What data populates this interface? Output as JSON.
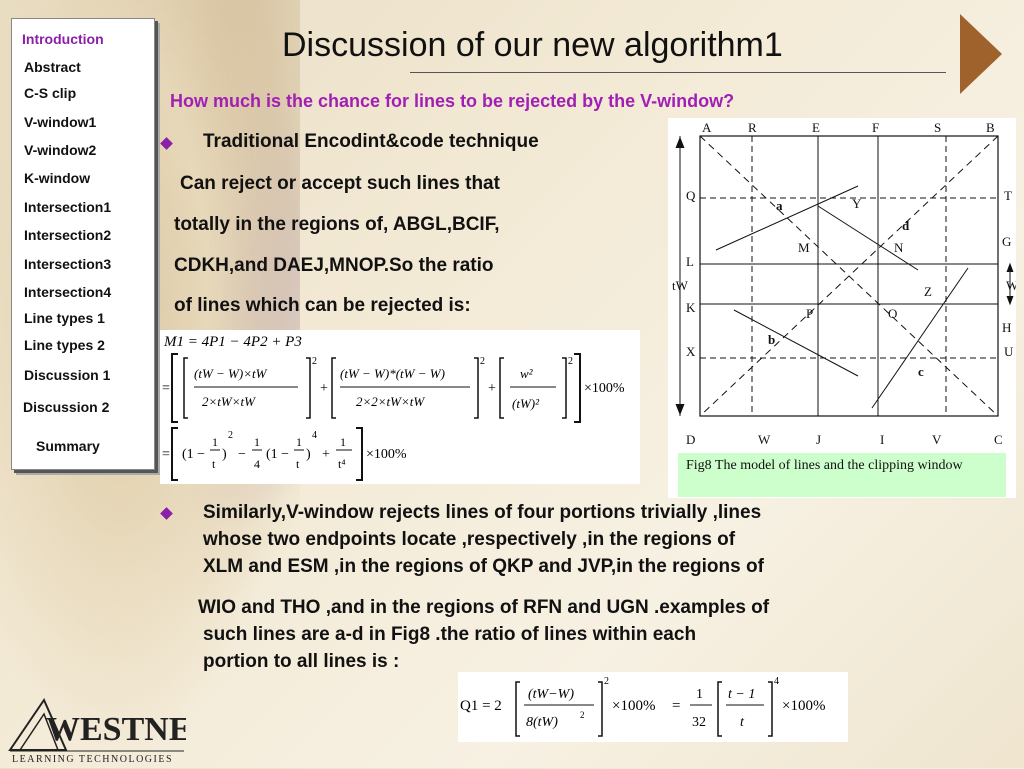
{
  "sidebar": {
    "items": [
      {
        "label": "Introduction",
        "active": true
      },
      {
        "label": "Abstract"
      },
      {
        "label": "C-S clip"
      },
      {
        "label": "V-window1"
      },
      {
        "label": "V-window2"
      },
      {
        "label": "K-window"
      },
      {
        "label": "Intersection1"
      },
      {
        "label": "Intersection2"
      },
      {
        "label": "Intersection3"
      },
      {
        "label": "Intersection4"
      },
      {
        "label": "Line types 1"
      },
      {
        "label": "Line types 2"
      },
      {
        "label": "Discussion 1"
      },
      {
        "label": "Discussion 2"
      },
      {
        "label": "Summary"
      }
    ]
  },
  "slide": {
    "title": "Discussion of our new algorithm1",
    "question": "How much is the chance for lines to be rejected  by the V-window?",
    "bullet1": "Traditional Encodint&code technique",
    "para1": [
      "Can reject or accept  such lines that",
      "totally in the regions of, ABGL,BCIF,",
      "CDKH,and DAEJ,MNOP.So the ratio",
      "of lines which can be rejected is:"
    ],
    "bullet2": [
      "Similarly,V-window rejects lines of four portions trivially ,lines",
      "whose two endpoints locate ,respectively ,in the regions of",
      "XLM and ESM ,in the regions of QKP and JVP,in the regions of"
    ],
    "para2": [
      "WIO and THO ,and in the regions of RFN and UGN .examples of",
      "such lines are a-d  in Fig8  .the ratio of lines within each",
      "portion to all lines is :"
    ]
  },
  "figure": {
    "top_labels": [
      "A",
      "R",
      "E",
      "F",
      "S",
      "B"
    ],
    "bottom_labels": [
      "D",
      "W",
      "J",
      "I",
      "V",
      "C"
    ],
    "left_labels": [
      "Q",
      "L",
      "tW",
      "K",
      "X"
    ],
    "right_labels": [
      "T",
      "G",
      "W",
      "H",
      "U"
    ],
    "inner_labels": [
      "a",
      "Y",
      "d",
      "M",
      "N",
      "Z",
      "P",
      "O",
      "b",
      "c"
    ],
    "caption": "Fig8 The model of lines and the clipping window"
  },
  "formulas": {
    "m1": "M1 = 4P1 − 4P2 + P3",
    "percent": "×100%",
    "q1": "Q1 = 2"
  },
  "logo": {
    "text": "WESTNET",
    "subtext": "LEARNING TECHNOLOGIES"
  }
}
